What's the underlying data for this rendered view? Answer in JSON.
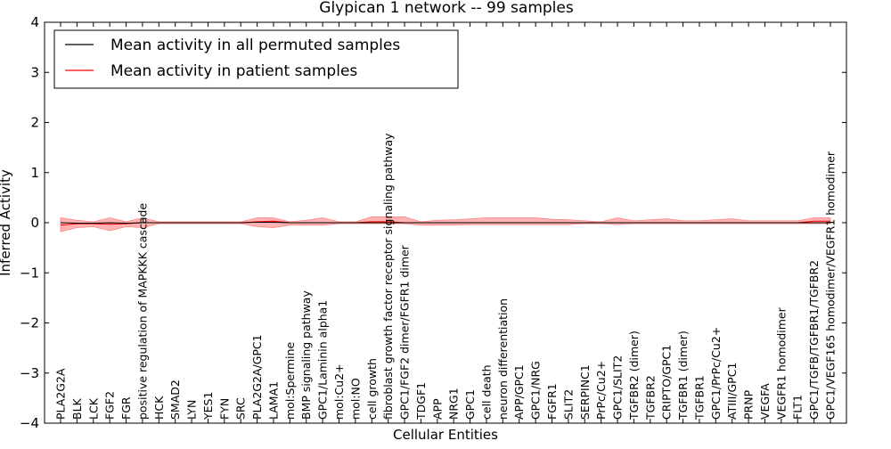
{
  "chart_data": {
    "type": "line",
    "title": "Glypican 1 network -- 99 samples",
    "xlabel": "Cellular Entities",
    "ylabel": "Inferred Activity",
    "ylim": [
      -4,
      4
    ],
    "yticks": [
      -4,
      -3,
      -2,
      -1,
      0,
      1,
      2,
      3,
      4
    ],
    "grid": false,
    "legend_position": "top-left",
    "categories": [
      "PLA2G2A",
      "BLK",
      "LCK",
      "FGF2",
      "FGR",
      "positive regulation of MAPKKK cascade",
      "HCK",
      "SMAD2",
      "LYN",
      "YES1",
      "FYN",
      "SRC",
      "PLA2G2A/GPC1",
      "LAMA1",
      "mol:Spermine",
      "BMP signaling pathway",
      "GPC1/Laminin alpha1",
      "mol:Cu2+",
      "mol:NO",
      "cell growth",
      "fibroblast growth factor receptor signaling pathway",
      "GPC1/FGF2 dimer/FGFR1 dimer",
      "TDGF1",
      "APP",
      "NRG1",
      "GPC1",
      "cell death",
      "neuron differentiation",
      "APP/GPC1",
      "GPC1/NRG",
      "FGFR1",
      "SLIT2",
      "SERPINC1",
      "PrPc/Cu2+",
      "GPC1/SLIT2",
      "TGFBR2 (dimer)",
      "TGFBR2",
      "CRIPTO/GPC1",
      "TGFBR1 (dimer)",
      "TGFBR1",
      "GPC1/PrPc/Cu2+",
      "ATIII/GPC1",
      "PRNP",
      "VEGFA",
      "VEGFR1 homodimer",
      "FLT1",
      "GPC1/TGFB/TGFBR1/TGFBR2",
      "GPC1/VEGF165 homodimer/VEGFR1 homodimer"
    ],
    "series": [
      {
        "name": "Mean activity in all permuted samples",
        "color": "#000000",
        "values": [
          0.0,
          -0.01,
          -0.01,
          0.0,
          -0.01,
          0.0,
          0.0,
          0.0,
          0.0,
          0.0,
          0.0,
          0.0,
          0.01,
          0.01,
          0.0,
          0.0,
          0.0,
          0.0,
          0.0,
          0.0,
          0.0,
          0.0,
          0.0,
          0.0,
          0.0,
          0.0,
          0.0,
          0.0,
          0.0,
          0.0,
          0.0,
          0.0,
          0.0,
          0.0,
          0.0,
          0.0,
          0.0,
          0.0,
          0.0,
          0.0,
          0.0,
          0.0,
          0.0,
          0.0,
          0.0,
          0.0,
          0.0,
          0.0
        ]
      },
      {
        "name": "Mean activity in patient samples",
        "color": "#ff0000",
        "band_color": "#ff8080",
        "values": [
          -0.05,
          -0.02,
          -0.02,
          -0.03,
          -0.02,
          0.0,
          0.0,
          0.0,
          0.0,
          0.0,
          0.0,
          0.0,
          0.02,
          0.03,
          0.0,
          0.0,
          0.0,
          0.0,
          0.0,
          0.02,
          0.02,
          0.0,
          0.0,
          0.0,
          0.0,
          0.0,
          0.0,
          0.0,
          0.0,
          0.0,
          0.0,
          0.0,
          0.0,
          0.0,
          0.0,
          0.0,
          0.0,
          0.0,
          0.0,
          0.0,
          0.0,
          0.0,
          0.0,
          0.0,
          0.0,
          0.0,
          0.03,
          0.03
        ],
        "band_upper": [
          0.1,
          0.05,
          0.02,
          0.1,
          0.02,
          0.1,
          0.02,
          0.02,
          0.02,
          0.02,
          0.02,
          0.02,
          0.1,
          0.1,
          0.02,
          0.05,
          0.1,
          0.02,
          0.02,
          0.12,
          0.12,
          0.12,
          0.02,
          0.05,
          0.06,
          0.08,
          0.1,
          0.1,
          0.1,
          0.1,
          0.07,
          0.06,
          0.04,
          0.02,
          0.1,
          0.04,
          0.06,
          0.08,
          0.04,
          0.04,
          0.06,
          0.08,
          0.04,
          0.04,
          0.04,
          0.04,
          0.1,
          0.1
        ],
        "band_lower": [
          -0.18,
          -0.1,
          -0.08,
          -0.16,
          -0.08,
          -0.1,
          -0.02,
          -0.02,
          -0.02,
          -0.02,
          -0.02,
          -0.02,
          -0.08,
          -0.1,
          -0.05,
          -0.05,
          -0.05,
          -0.02,
          -0.02,
          -0.02,
          -0.02,
          -0.02,
          -0.05,
          -0.05,
          -0.05,
          -0.04,
          -0.04,
          -0.04,
          -0.04,
          -0.04,
          -0.04,
          -0.04,
          -0.02,
          -0.02,
          -0.04,
          -0.02,
          -0.02,
          -0.02,
          -0.02,
          -0.02,
          -0.02,
          -0.02,
          -0.02,
          -0.02,
          -0.02,
          -0.02,
          -0.02,
          -0.02
        ]
      }
    ]
  }
}
